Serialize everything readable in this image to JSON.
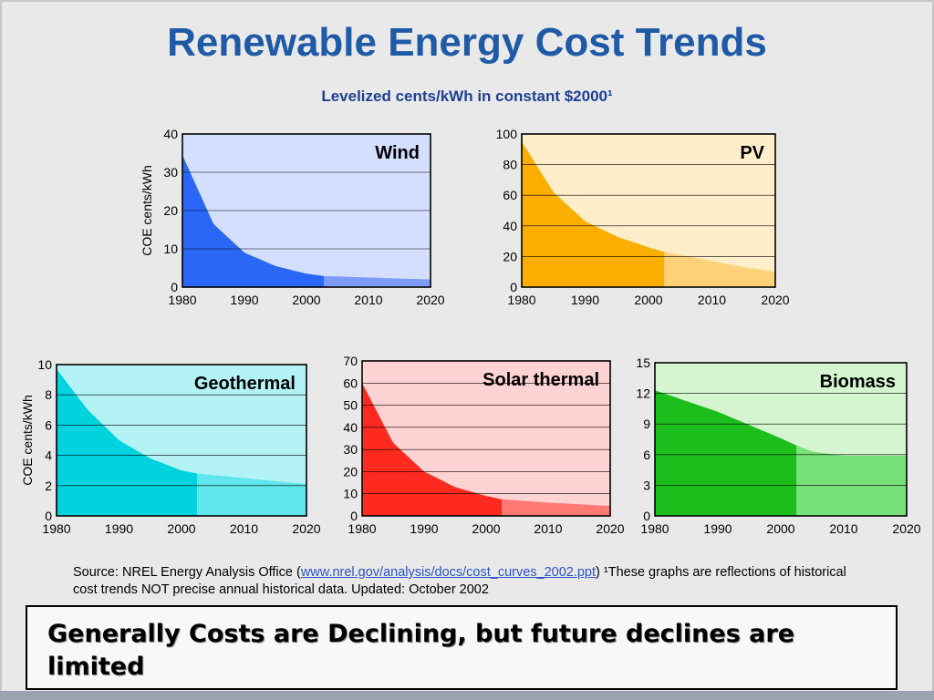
{
  "slide": {
    "title": "Renewable Energy Cost Trends",
    "subtitle": "Levelized cents/kWh in constant $2000¹",
    "source_prefix": "Source: NREL Energy Analysis Office (",
    "source_link": "www.nrel.gov/analysis/docs/cost_curves_2002.ppt",
    "source_suffix": ") ¹These graphs are reflections of historical cost trends NOT precise annual historical data. Updated: October 2002",
    "callout": "Generally Costs are Declining, but future declines are limited"
  },
  "chart_data": [
    {
      "type": "area",
      "title": "Wind",
      "ylabel": "COE cents/kWh",
      "xlim": [
        1980,
        2020
      ],
      "ylim": [
        0,
        40
      ],
      "xticks": [
        "1980",
        "1990",
        "2000",
        "2010",
        "2020"
      ],
      "yticks": [
        "0",
        "10",
        "20",
        "30",
        "40"
      ],
      "historical_until": 2002.8,
      "x": [
        1980,
        1985,
        1990,
        1995,
        2000,
        2002.8,
        2010,
        2020
      ],
      "values": [
        34.5,
        16.5,
        9,
        5.5,
        3.5,
        2.9,
        2.5,
        2
      ],
      "colors": {
        "bg": "#d4deff",
        "hist": "#2b67f6",
        "future": "#7d9cf8"
      }
    },
    {
      "type": "area",
      "title": "PV",
      "ylabel": "",
      "xlim": [
        1980,
        2020
      ],
      "ylim": [
        0,
        100
      ],
      "xticks": [
        "1980",
        "1990",
        "2000",
        "2010",
        "2020"
      ],
      "yticks": [
        "0",
        "20",
        "40",
        "60",
        "80",
        "100"
      ],
      "historical_until": 2002.5,
      "x": [
        1980,
        1985,
        1990,
        1995,
        2000,
        2002.5,
        2010,
        2015,
        2020
      ],
      "values": [
        95,
        62,
        43,
        33,
        26,
        23,
        17,
        13,
        10
      ],
      "colors": {
        "bg": "#ffeec9",
        "hist": "#fbae00",
        "future": "#ffd27a"
      }
    },
    {
      "type": "area",
      "title": "Geothermal",
      "ylabel": "COE cents/kWh",
      "xlim": [
        1980,
        2020
      ],
      "ylim": [
        0,
        10
      ],
      "xticks": [
        "1980",
        "1990",
        "2000",
        "2010",
        "2020"
      ],
      "yticks": [
        "0",
        "2",
        "4",
        "6",
        "8",
        "10"
      ],
      "historical_until": 2002.5,
      "x": [
        1980,
        1985,
        1990,
        1995,
        2000,
        2002.5,
        2010,
        2020
      ],
      "values": [
        9.7,
        7,
        5,
        3.8,
        3,
        2.8,
        2.5,
        2.1
      ],
      "colors": {
        "bg": "#b3f3f5",
        "hist": "#00d3de",
        "future": "#5fe6ec"
      }
    },
    {
      "type": "area",
      "title": "Solar thermal",
      "ylabel": "",
      "xlim": [
        1980,
        2020
      ],
      "ylim": [
        0,
        70
      ],
      "xticks": [
        "1980",
        "1990",
        "2000",
        "2010",
        "2020"
      ],
      "yticks": [
        "0",
        "10",
        "20",
        "30",
        "40",
        "50",
        "60",
        "70"
      ],
      "historical_until": 2002.5,
      "x": [
        1980,
        1985,
        1990,
        1995,
        2000,
        2002.5,
        2010,
        2020
      ],
      "values": [
        60,
        33,
        20,
        13,
        9,
        7.5,
        6,
        4.5
      ],
      "colors": {
        "bg": "#ffd3d3",
        "hist": "#ff2a1f",
        "future": "#ff7a73"
      }
    },
    {
      "type": "area",
      "title": "Biomass",
      "ylabel": "",
      "xlim": [
        1980,
        2020
      ],
      "ylim": [
        0,
        15
      ],
      "xticks": [
        "1980",
        "1990",
        "2000",
        "2010",
        "2020"
      ],
      "yticks": [
        "0",
        "3",
        "6",
        "9",
        "12",
        "15"
      ],
      "historical_until": 2002.5,
      "x": [
        1980,
        1990,
        2000,
        2002.5,
        2005,
        2010,
        2020
      ],
      "values": [
        12.3,
        10.2,
        7.6,
        6.9,
        6.3,
        5.9,
        5.9
      ],
      "colors": {
        "bg": "#d4f5cf",
        "hist": "#1cbe1c",
        "future": "#77e076"
      }
    }
  ]
}
